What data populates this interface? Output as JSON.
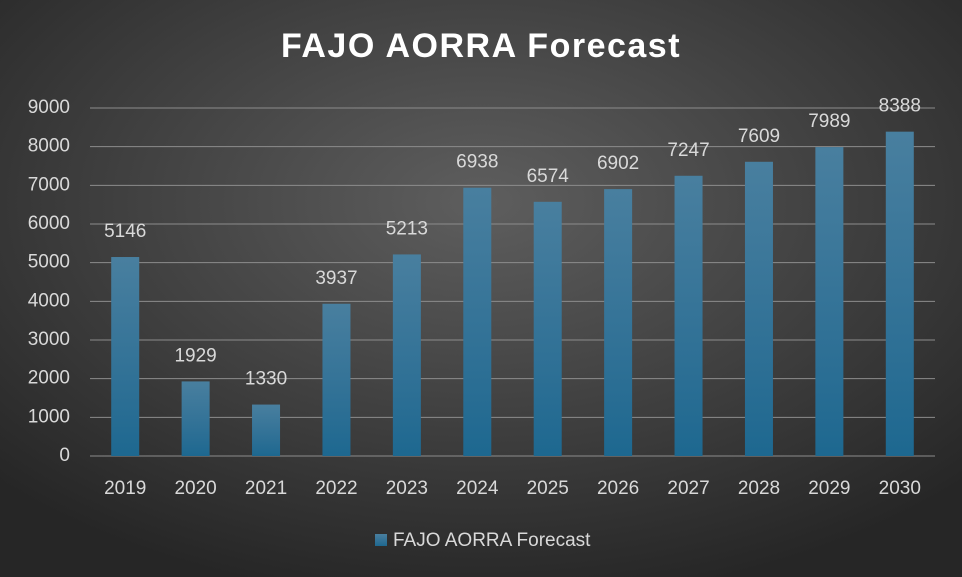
{
  "chart_data": {
    "type": "bar",
    "title": "FAJO AORRA Forecast",
    "categories": [
      "2019",
      "2020",
      "2021",
      "2022",
      "2023",
      "2024",
      "2025",
      "2026",
      "2027",
      "2028",
      "2029",
      "2030"
    ],
    "series": [
      {
        "name": "FAJO AORRA Forecast",
        "color": "#1d6890",
        "values": [
          5146,
          1929,
          1330,
          3937,
          5213,
          6938,
          6574,
          6902,
          7247,
          7609,
          7989,
          8388
        ]
      }
    ],
    "ylim": [
      0,
      9000
    ],
    "yticks": [
      0,
      1000,
      2000,
      3000,
      4000,
      5000,
      6000,
      7000,
      8000,
      9000
    ],
    "grid": true,
    "legend": "bottom",
    "data_labels": true
  }
}
